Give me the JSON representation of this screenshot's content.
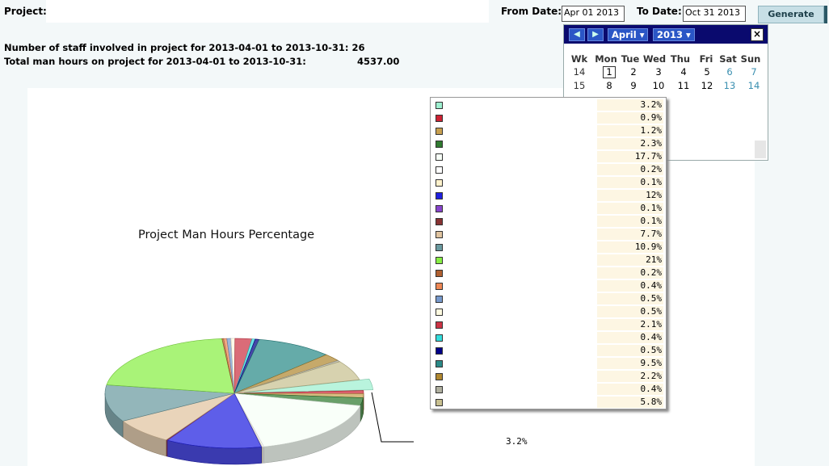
{
  "header": {
    "project_label": "Project:",
    "project_value": "",
    "from_label": "From Date:",
    "from_value": "Apr 01 2013",
    "to_label": "To Date:",
    "to_value": "Oct 31 2013",
    "generate_label": "Generate"
  },
  "stats": {
    "staff_line": "Number of staff involved in project for 2013-04-01 to 2013-10-31: 26",
    "hours_label": "Total man hours on project for 2013-04-01 to 2013-10-31:",
    "hours_value": "4537.00"
  },
  "calendar": {
    "month": "April",
    "year": "2013",
    "prev_icon": "prev-arrow-icon",
    "next_icon": "next-arrow-icon",
    "close": "×",
    "headers": [
      "Wk",
      "Mon",
      "Tue",
      "Wed",
      "Thu",
      "Fri",
      "Sat",
      "Sun"
    ],
    "rows": [
      [
        "14",
        "1",
        "2",
        "3",
        "4",
        "5",
        "6",
        "7"
      ],
      [
        "15",
        "8",
        "9",
        "10",
        "11",
        "12",
        "13",
        "14"
      ]
    ]
  },
  "chart_data": {
    "type": "pie",
    "title": "Project Man Hours Percentage",
    "legend_placement": "right",
    "callout_label": "3.2%",
    "slices": [
      {
        "value": 3.2,
        "label": "3.2%",
        "color": "#9ef0d0"
      },
      {
        "value": 0.9,
        "label": "0.9%",
        "color": "#cc2233"
      },
      {
        "value": 1.2,
        "label": "1.2%",
        "color": "#c8a050"
      },
      {
        "value": 2.3,
        "label": "2.3%",
        "color": "#2f7a2f"
      },
      {
        "value": 17.7,
        "label": "17.7%",
        "color": "#f7fff7"
      },
      {
        "value": 0.2,
        "label": "0.2%",
        "color": "#ffffff"
      },
      {
        "value": 0.1,
        "label": "0.1%",
        "color": "#fff2cc"
      },
      {
        "value": 12,
        "label": "12%",
        "color": "#2020e0"
      },
      {
        "value": 0.1,
        "label": "0.1%",
        "color": "#8844cc"
      },
      {
        "value": 0.1,
        "label": "0.1%",
        "color": "#883333"
      },
      {
        "value": 7.7,
        "label": "7.7%",
        "color": "#e0c4a0"
      },
      {
        "value": 10.9,
        "label": "10.9%",
        "color": "#6a9aa0"
      },
      {
        "value": 21,
        "label": "21%",
        "color": "#88ee44"
      },
      {
        "value": 0.2,
        "label": "0.2%",
        "color": "#b06030"
      },
      {
        "value": 0.4,
        "label": "0.4%",
        "color": "#ee8855"
      },
      {
        "value": 0.5,
        "label": "0.5%",
        "color": "#7799cc"
      },
      {
        "value": 0.5,
        "label": "0.5%",
        "color": "#fffbe0"
      },
      {
        "value": 2.1,
        "label": "2.1%",
        "color": "#cc3344"
      },
      {
        "value": 0.4,
        "label": "0.4%",
        "color": "#33dddd"
      },
      {
        "value": 0.5,
        "label": "0.5%",
        "color": "#000088"
      },
      {
        "value": 9.5,
        "label": "9.5%",
        "color": "#2a8a88"
      },
      {
        "value": 2.2,
        "label": "2.2%",
        "color": "#b08830"
      },
      {
        "value": 0.4,
        "label": "0.4%",
        "color": "#b0b0a0"
      },
      {
        "value": 5.8,
        "label": "5.8%",
        "color": "#c8c090"
      }
    ]
  }
}
